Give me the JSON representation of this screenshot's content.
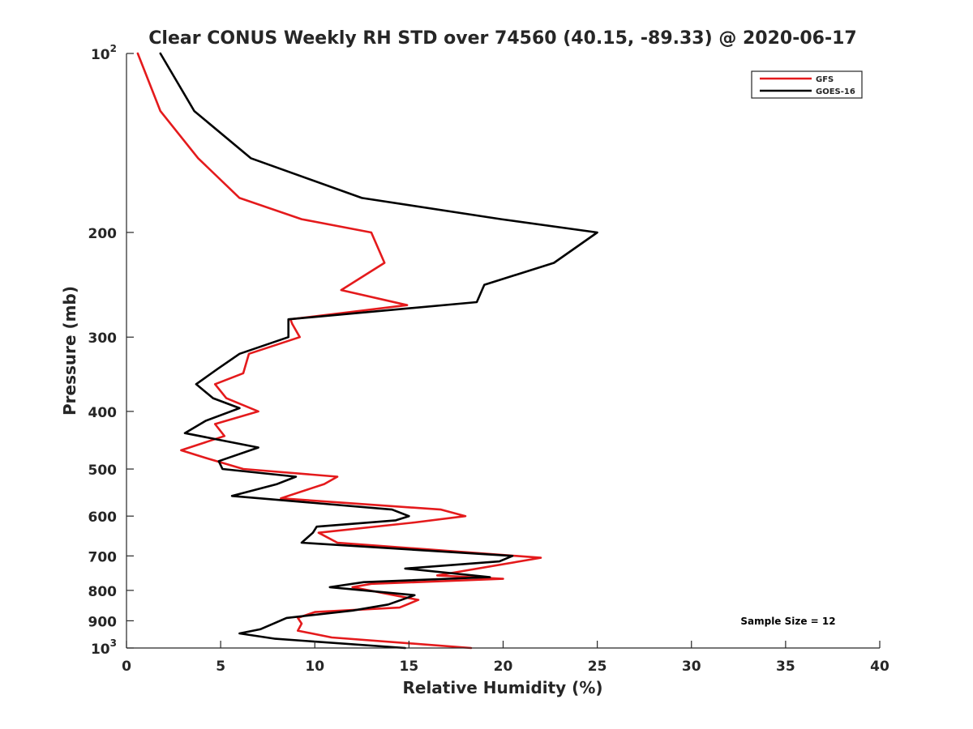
{
  "chart_data": {
    "type": "line",
    "title": "Clear CONUS Weekly RH STD over 74560 (40.15, -89.33) @ 2020-06-17",
    "xlabel": "Relative Humidity (%)",
    "ylabel": "Pressure (mb)",
    "xlim": [
      0,
      40
    ],
    "ylim": [
      100,
      1000
    ],
    "y_scale": "log",
    "y_reversed": true,
    "grid": false,
    "legend_position": "top-right",
    "x_ticks": [
      {
        "value": 0,
        "label": "0"
      },
      {
        "value": 5,
        "label": "5"
      },
      {
        "value": 10,
        "label": "10"
      },
      {
        "value": 15,
        "label": "15"
      },
      {
        "value": 20,
        "label": "20"
      },
      {
        "value": 25,
        "label": "25"
      },
      {
        "value": 30,
        "label": "30"
      },
      {
        "value": 35,
        "label": "35"
      },
      {
        "value": 40,
        "label": "40"
      }
    ],
    "y_ticks": [
      {
        "value": 100,
        "label": "10",
        "sup": "2"
      },
      {
        "value": 200,
        "label": "200",
        "sup": ""
      },
      {
        "value": 300,
        "label": "300",
        "sup": ""
      },
      {
        "value": 400,
        "label": "400",
        "sup": ""
      },
      {
        "value": 500,
        "label": "500",
        "sup": ""
      },
      {
        "value": 600,
        "label": "600",
        "sup": ""
      },
      {
        "value": 700,
        "label": "700",
        "sup": ""
      },
      {
        "value": 800,
        "label": "800",
        "sup": ""
      },
      {
        "value": 900,
        "label": "900",
        "sup": ""
      },
      {
        "value": 1000,
        "label": "10",
        "sup": "3"
      }
    ],
    "annotation": "Sample Size = 12",
    "series": [
      {
        "name": "GFS",
        "color": "#e41a1c",
        "points": [
          [
            0.6,
            100
          ],
          [
            1.8,
            125
          ],
          [
            3.8,
            150
          ],
          [
            6.0,
            175
          ],
          [
            9.3,
            190
          ],
          [
            13.0,
            200
          ],
          [
            13.7,
            225
          ],
          [
            11.4,
            250
          ],
          [
            14.9,
            265
          ],
          [
            8.7,
            280
          ],
          [
            8.8,
            285
          ],
          [
            9.2,
            300
          ],
          [
            6.5,
            320
          ],
          [
            6.2,
            345
          ],
          [
            4.7,
            360
          ],
          [
            5.3,
            380
          ],
          [
            7.0,
            400
          ],
          [
            4.7,
            420
          ],
          [
            5.2,
            440
          ],
          [
            2.9,
            465
          ],
          [
            4.3,
            480
          ],
          [
            6.2,
            500
          ],
          [
            11.2,
            515
          ],
          [
            10.5,
            530
          ],
          [
            8.2,
            560
          ],
          [
            16.7,
            585
          ],
          [
            18.0,
            600
          ],
          [
            15.3,
            615
          ],
          [
            10.2,
            640
          ],
          [
            11.2,
            665
          ],
          [
            22.0,
            705
          ],
          [
            16.5,
            755
          ],
          [
            20.0,
            765
          ],
          [
            13.0,
            780
          ],
          [
            12.0,
            790
          ],
          [
            15.5,
            830
          ],
          [
            14.5,
            855
          ],
          [
            10.0,
            870
          ],
          [
            9.1,
            890
          ],
          [
            9.3,
            910
          ],
          [
            9.1,
            935
          ],
          [
            10.9,
            960
          ],
          [
            18.3,
            1000
          ]
        ]
      },
      {
        "name": "GOES-16",
        "color": "#000000",
        "points": [
          [
            1.8,
            100
          ],
          [
            3.6,
            125
          ],
          [
            6.6,
            150
          ],
          [
            12.5,
            175
          ],
          [
            19.9,
            190
          ],
          [
            25.0,
            200
          ],
          [
            22.7,
            225
          ],
          [
            19.0,
            245
          ],
          [
            18.6,
            262
          ],
          [
            8.6,
            280
          ],
          [
            8.6,
            300
          ],
          [
            6.0,
            320
          ],
          [
            4.8,
            340
          ],
          [
            3.7,
            360
          ],
          [
            4.6,
            380
          ],
          [
            6.0,
            395
          ],
          [
            4.2,
            415
          ],
          [
            3.1,
            435
          ],
          [
            7.0,
            460
          ],
          [
            4.9,
            485
          ],
          [
            5.1,
            500
          ],
          [
            9.0,
            515
          ],
          [
            8.0,
            530
          ],
          [
            5.6,
            555
          ],
          [
            14.1,
            585
          ],
          [
            15.0,
            600
          ],
          [
            14.3,
            610
          ],
          [
            10.1,
            625
          ],
          [
            9.9,
            640
          ],
          [
            9.3,
            665
          ],
          [
            20.5,
            700
          ],
          [
            19.8,
            715
          ],
          [
            14.8,
            735
          ],
          [
            19.3,
            760
          ],
          [
            12.6,
            775
          ],
          [
            10.8,
            790
          ],
          [
            15.3,
            815
          ],
          [
            13.9,
            845
          ],
          [
            12.0,
            865
          ],
          [
            8.5,
            890
          ],
          [
            7.8,
            910
          ],
          [
            7.1,
            930
          ],
          [
            6.0,
            945
          ],
          [
            7.9,
            965
          ],
          [
            14.8,
            1000
          ]
        ]
      }
    ]
  }
}
